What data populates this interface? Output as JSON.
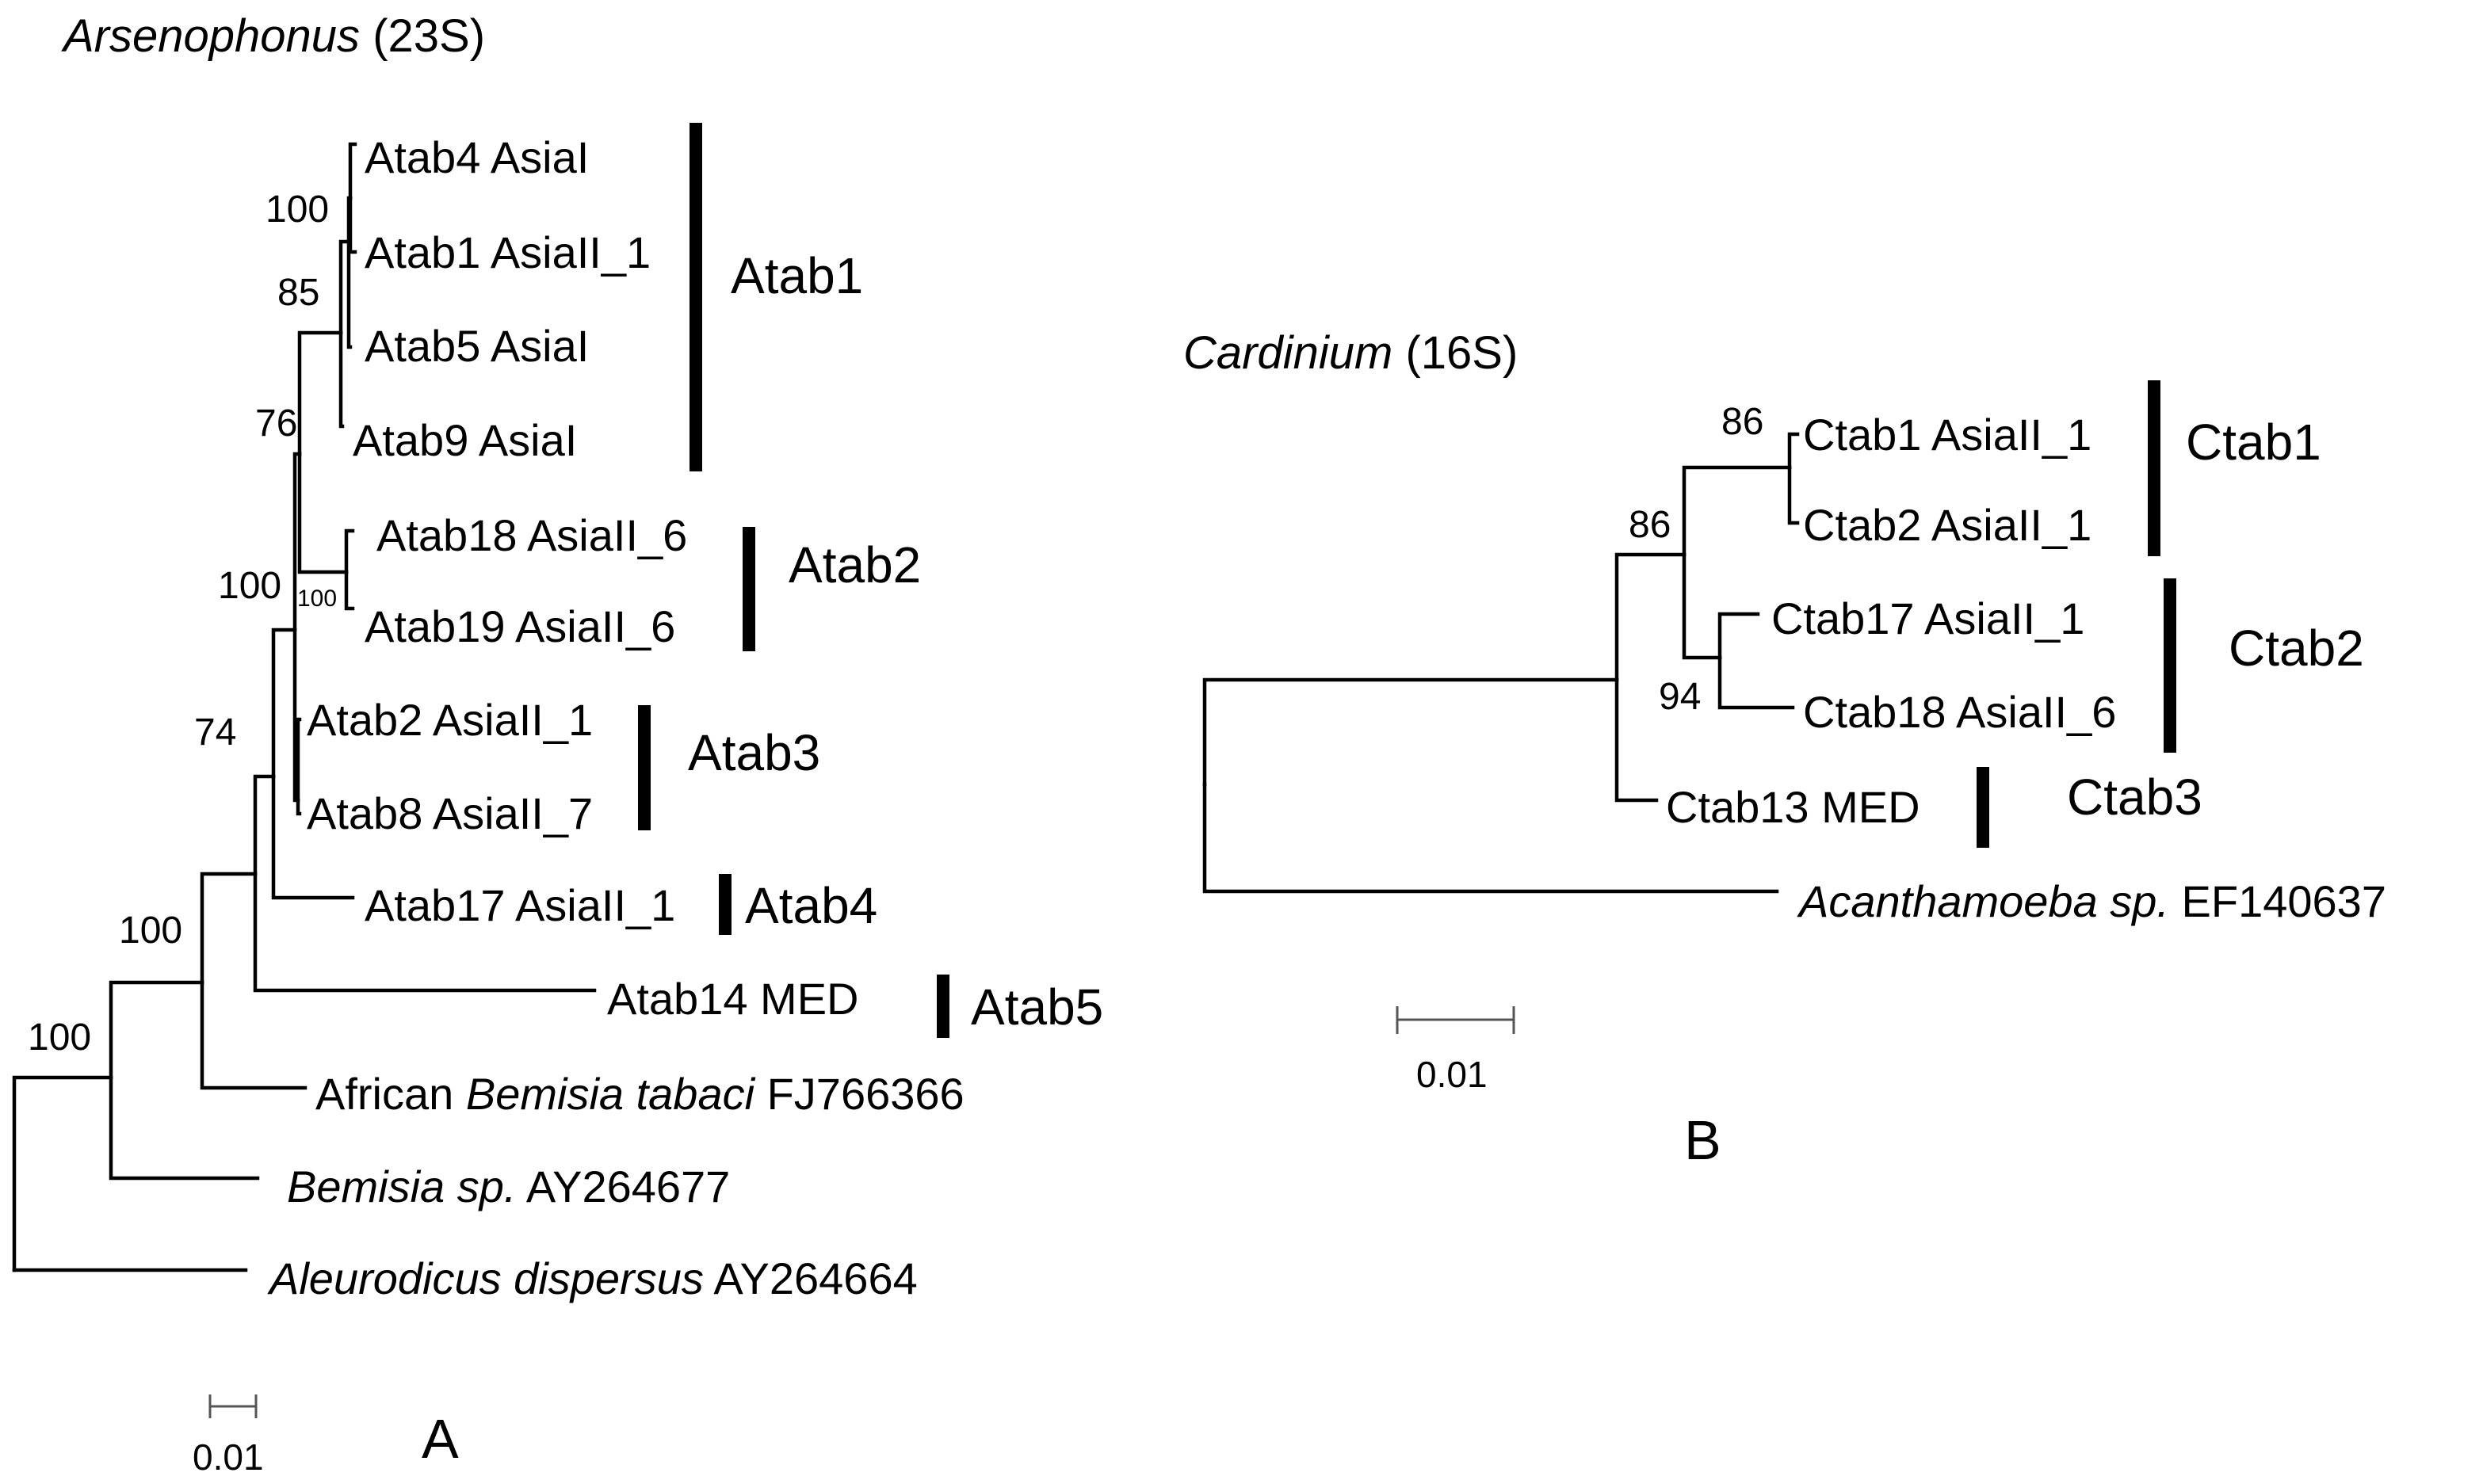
{
  "panel_a": {
    "title": {
      "genus": "Arsenophonus",
      "gene": "(23S)"
    },
    "leaves": [
      {
        "id": "atab4",
        "name": "Atab4 AsiaI"
      },
      {
        "id": "atab1",
        "name": "Atab1 AsiaII_1"
      },
      {
        "id": "atab5",
        "name": "Atab5 AsiaI"
      },
      {
        "id": "atab9",
        "name": "Atab9 AsiaI"
      },
      {
        "id": "atab18",
        "name": "Atab18 AsiaII_6"
      },
      {
        "id": "atab19",
        "name": "Atab19 AsiaII_6"
      },
      {
        "id": "atab2",
        "name": "Atab2 AsiaII_1"
      },
      {
        "id": "atab8",
        "name": "Atab8 AsiaII_7"
      },
      {
        "id": "atab17",
        "name": "Atab17 AsiaII_1"
      },
      {
        "id": "atab14",
        "name": "Atab14 MED"
      },
      {
        "id": "african",
        "italic": "Bemisia tabaci",
        "pre": "African ",
        "post": " FJ766366"
      },
      {
        "id": "bemisia_sp",
        "italic": "Bemisia sp.",
        "post": " AY264677"
      },
      {
        "id": "aleurodicus",
        "italic": "Aleurodicus dispersus",
        "post": " AY264664"
      }
    ],
    "groups": [
      "Atab1",
      "Atab2",
      "Atab3",
      "Atab4",
      "Atab5"
    ],
    "bootstrap": [
      "100",
      "85",
      "76",
      "100",
      "100",
      "74",
      "100",
      "100"
    ],
    "scale_label": "0.01",
    "panel_label": "A"
  },
  "panel_b": {
    "title": {
      "genus": "Cardinium",
      "gene": "(16S)"
    },
    "leaves": [
      {
        "id": "ctab1",
        "name": "Ctab1 AsiaII_1"
      },
      {
        "id": "ctab2",
        "name": "Ctab2 AsiaII_1"
      },
      {
        "id": "ctab17",
        "name": "Ctab17 AsiaII_1"
      },
      {
        "id": "ctab18",
        "name": "Ctab18 AsiaII_6"
      },
      {
        "id": "ctab13",
        "name": "Ctab13 MED"
      },
      {
        "id": "acanthamoeba",
        "italic": "Acanthamoeba sp.",
        "post": " EF140637"
      }
    ],
    "groups": [
      "Ctab1",
      "Ctab2",
      "Ctab3"
    ],
    "bootstrap": [
      "86",
      "86",
      "94"
    ],
    "scale_label": "0.01",
    "panel_label": "B"
  }
}
